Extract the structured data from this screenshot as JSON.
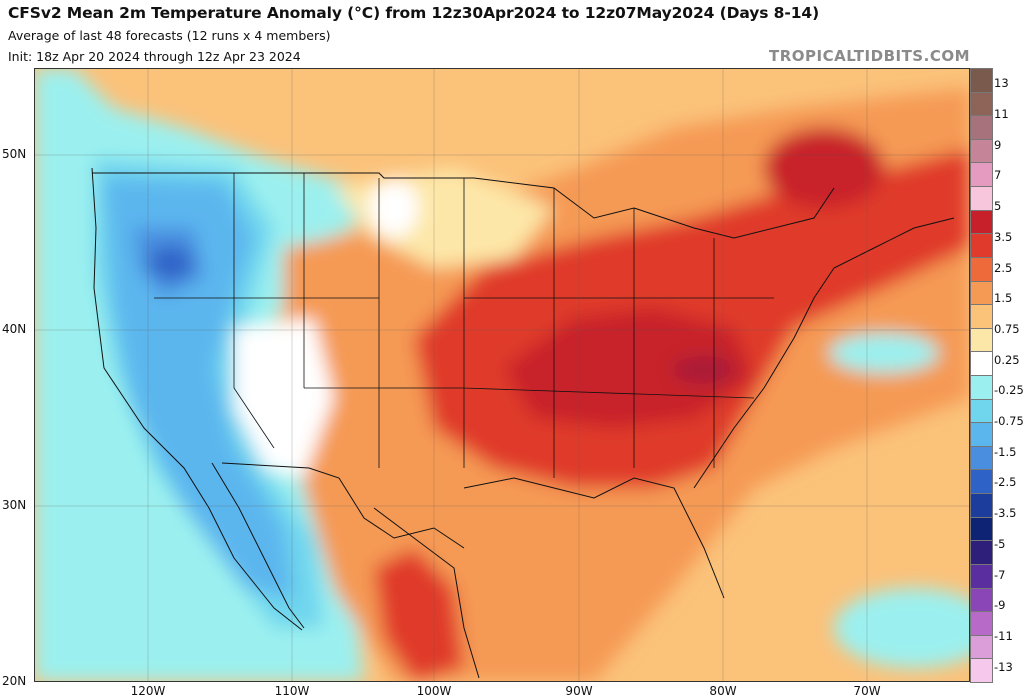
{
  "header": {
    "title": "CFSv2 Mean 2m Temperature Anomaly (°C) from 12z30Apr2024 to 12z07May2024 (Days 8-14)",
    "subtitle": "Average of last 48 forecasts (12 runs x 4 members)",
    "init": "Init: 18z Apr 20 2024 through 12z Apr 23 2024",
    "watermark": "TROPICALTIDBITS.COM"
  },
  "axes": {
    "lat_labels": [
      "50N",
      "40N",
      "30N",
      "20N"
    ],
    "lon_labels": [
      "120W",
      "110W",
      "100W",
      "90W",
      "80W",
      "70W"
    ]
  },
  "colorbar": {
    "labels": [
      "13",
      "11",
      "9",
      "7",
      "5",
      "3.5",
      "2.5",
      "1.5",
      "0.75",
      "0.25",
      "-0.25",
      "-0.75",
      "-1.5",
      "-2.5",
      "-3.5",
      "-5",
      "-7",
      "-9",
      "-11",
      "-13"
    ],
    "colors": [
      "#7a5a4c",
      "#8f6458",
      "#a8727c",
      "#c68499",
      "#e59abf",
      "#f8c6dc",
      "#c8202a",
      "#e03a2c",
      "#ee6a3a",
      "#f59a55",
      "#fbc27a",
      "#fde7a8",
      "#ffffff",
      "#9bf0ef",
      "#6fd6ee",
      "#5cb6ee",
      "#4a8ee0",
      "#2f62c6",
      "#1d3d9c",
      "#0f2375",
      "#2e1f7a",
      "#5a2e9e",
      "#8a45b6",
      "#b86ac8",
      "#dc9ed8",
      "#f5c8ec"
    ]
  },
  "map_fills": {
    "ocean_base": "#fbc27a",
    "land_base": "#f59a55",
    "pacific_cool": "#9bf0ef",
    "west_cold": "#6fd6ee",
    "west_colder": "#5cb6ee",
    "west_coldest": "#4a8ee0",
    "core_cold": "#2f62c6",
    "warm_core": "#e03a2c",
    "hot_core": "#c8202a",
    "hottest": "#a81c38",
    "neutral": "#ffffff",
    "pale": "#fde7a8"
  }
}
